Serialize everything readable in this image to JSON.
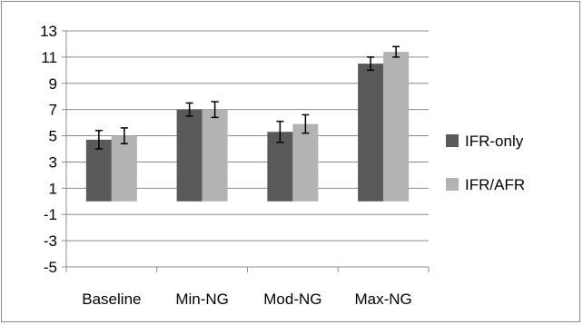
{
  "chart_data": {
    "type": "bar",
    "categories": [
      "Baseline",
      "Min-NG",
      "Mod-NG",
      "Max-NG"
    ],
    "series": [
      {
        "name": "IFR-only",
        "color": "#595959",
        "values": [
          4.7,
          7.0,
          5.3,
          10.5
        ],
        "errors": [
          0.7,
          0.5,
          0.8,
          0.5
        ]
      },
      {
        "name": "IFR/AFR",
        "color": "#b3b3b3",
        "values": [
          5.0,
          7.0,
          5.9,
          11.4
        ],
        "errors": [
          0.6,
          0.6,
          0.7,
          0.4
        ]
      }
    ],
    "ylim": [
      -5,
      13
    ],
    "yticks": [
      "13",
      "11",
      "9",
      "7",
      "5",
      "3",
      "1",
      "-1",
      "-3",
      "-5"
    ],
    "grid": true,
    "legend_position": "right"
  }
}
